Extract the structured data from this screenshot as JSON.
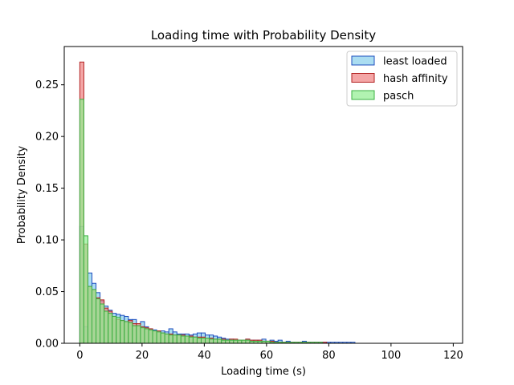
{
  "chart_data": {
    "type": "bar",
    "subtype": "histogram",
    "title": "Loading time with Probability Density",
    "xlabel": "Loading time (s)",
    "ylabel": "Probability Density",
    "xlim": [
      -5,
      123
    ],
    "ylim": [
      0,
      0.287
    ],
    "xticks": [
      0,
      20,
      40,
      60,
      80,
      100,
      120
    ],
    "yticks": [
      0.0,
      0.05,
      0.1,
      0.15,
      0.2,
      0.25
    ],
    "xtick_labels": [
      "0",
      "20",
      "40",
      "60",
      "80",
      "100",
      "120"
    ],
    "ytick_labels": [
      "0.00",
      "0.05",
      "0.10",
      "0.15",
      "0.20",
      "0.25"
    ],
    "bin_width": 1.3,
    "bin_start": 0,
    "grid": false,
    "legend_position": "top-right",
    "series": [
      {
        "name": "least loaded",
        "fill": "#87ceeb",
        "stroke": "#1f4fbf",
        "values": [
          0.113,
          0.016,
          0.068,
          0.058,
          0.049,
          0.041,
          0.036,
          0.032,
          0.029,
          0.028,
          0.027,
          0.026,
          0.023,
          0.023,
          0.019,
          0.021,
          0.016,
          0.014,
          0.013,
          0.012,
          0.012,
          0.011,
          0.014,
          0.011,
          0.009,
          0.009,
          0.009,
          0.008,
          0.009,
          0.01,
          0.01,
          0.008,
          0.008,
          0.007,
          0.006,
          0.005,
          0.004,
          0.004,
          0.003,
          0.003,
          0.003,
          0.004,
          0.003,
          0.003,
          0.003,
          0.004,
          0.002,
          0.003,
          0.002,
          0.003,
          0.001,
          0.002,
          0.001,
          0.001,
          0.001,
          0.002,
          0.001,
          0.001,
          0.001,
          0.001,
          0.001,
          0.001,
          0.001,
          0.001,
          0.001,
          0.001,
          0.001,
          0.001,
          0.0,
          0.0,
          0.0,
          0.0,
          0.0,
          0.0,
          0.0,
          0.0,
          0.0,
          0.0,
          0.0,
          0.0,
          0.0,
          0.0,
          0.0,
          0.0,
          0.0,
          0.0,
          0.0,
          0.0,
          0.0,
          0.0
        ]
      },
      {
        "name": "hash affinity",
        "fill": "#f08080",
        "stroke": "#b22222",
        "values": [
          0.272,
          0.096,
          0.055,
          0.052,
          0.044,
          0.042,
          0.034,
          0.031,
          0.026,
          0.023,
          0.022,
          0.021,
          0.022,
          0.019,
          0.019,
          0.016,
          0.015,
          0.014,
          0.012,
          0.012,
          0.01,
          0.009,
          0.009,
          0.008,
          0.008,
          0.008,
          0.007,
          0.007,
          0.006,
          0.006,
          0.006,
          0.005,
          0.005,
          0.004,
          0.004,
          0.004,
          0.003,
          0.004,
          0.004,
          0.003,
          0.003,
          0.004,
          0.003,
          0.003,
          0.003,
          0.002,
          0.002,
          0.002,
          0.001,
          0.001,
          0.001,
          0.001,
          0.001,
          0.001,
          0.001,
          0.001,
          0.001,
          0.001,
          0.001,
          0.001,
          0.001,
          0.0,
          0.0,
          0.0,
          0.0,
          0.0,
          0.0,
          0.0,
          0.0,
          0.0,
          0.0,
          0.0,
          0.0,
          0.0,
          0.0,
          0.0,
          0.0,
          0.0,
          0.0,
          0.0,
          0.0,
          0.0,
          0.0,
          0.0,
          0.0,
          0.0,
          0.0,
          0.0,
          0.0,
          0.0
        ]
      },
      {
        "name": "pasch",
        "fill": "#90ee90",
        "stroke": "#3cb043",
        "values": [
          0.236,
          0.104,
          0.055,
          0.052,
          0.043,
          0.038,
          0.031,
          0.029,
          0.026,
          0.025,
          0.022,
          0.021,
          0.02,
          0.017,
          0.017,
          0.015,
          0.014,
          0.013,
          0.012,
          0.011,
          0.01,
          0.009,
          0.008,
          0.008,
          0.008,
          0.007,
          0.007,
          0.006,
          0.006,
          0.005,
          0.005,
          0.005,
          0.004,
          0.004,
          0.004,
          0.003,
          0.003,
          0.003,
          0.003,
          0.003,
          0.003,
          0.003,
          0.002,
          0.002,
          0.002,
          0.002,
          0.002,
          0.001,
          0.001,
          0.001,
          0.001,
          0.001,
          0.001,
          0.001,
          0.001,
          0.001,
          0.001,
          0.001,
          0.001,
          0.001,
          0.0,
          0.0,
          0.0,
          0.0,
          0.0,
          0.0,
          0.0,
          0.0,
          0.0,
          0.0,
          0.0,
          0.0,
          0.0,
          0.0,
          0.0,
          0.0,
          0.0,
          0.0,
          0.0,
          0.0,
          0.0,
          0.0,
          0.0,
          0.0,
          0.0,
          0.0,
          0.0,
          0.0,
          0.0,
          0.0
        ]
      }
    ]
  }
}
